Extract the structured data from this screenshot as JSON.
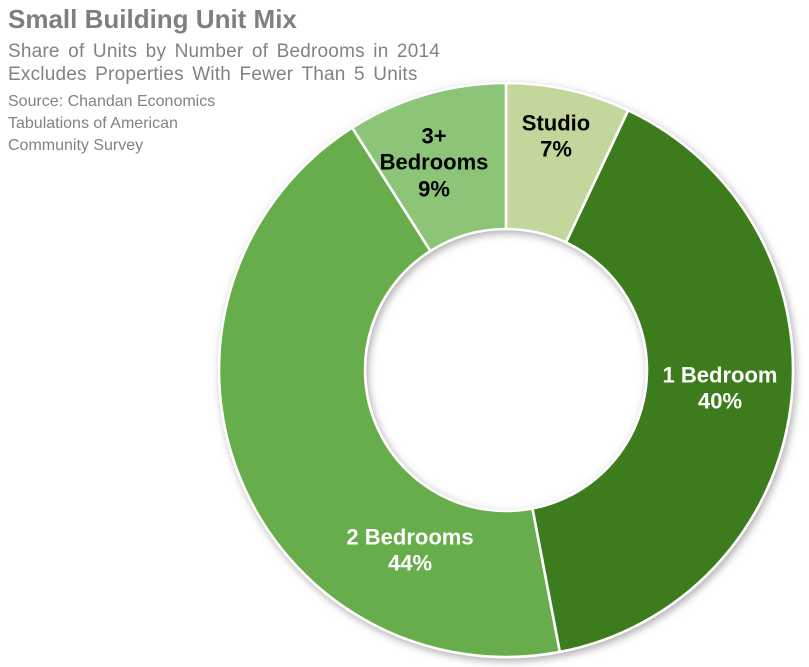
{
  "header": {
    "title": "Small Building Unit Mix",
    "subtitle_line1": "Share of Units by Number of Bedrooms in 2014",
    "subtitle_line2": "Excludes Properties With Fewer Than 5 Units",
    "source_line1": "Source: Chandan Economics",
    "source_line2": "Tabulations of American",
    "source_line3": "Community Survey",
    "title_color": "#7F7F7F",
    "subtitle_color": "#828282"
  },
  "chart_data": {
    "type": "pie",
    "subtype": "donut",
    "title": "Small Building Unit Mix",
    "categories": [
      "Studio",
      "1 Bedroom",
      "2 Bedrooms",
      "3+ Bedrooms"
    ],
    "values": [
      7,
      40,
      44,
      9
    ],
    "value_unit": "percent share of units",
    "start_angle_deg": 0,
    "direction": "clockwise",
    "legend_position": "none",
    "labels_inside_slices": true,
    "segments": [
      {
        "label": "Studio",
        "value": 7,
        "pct_label": "7%",
        "color": "#C3D69B",
        "label_color": "#000000"
      },
      {
        "label": "1 Bedroom",
        "value": 40,
        "pct_label": "40%",
        "color": "#3C7B1E",
        "label_color": "#FFFFFF"
      },
      {
        "label": "2 Bedrooms",
        "value": 44,
        "pct_label": "44%",
        "color": "#68AD4C",
        "label_color": "#FFFFFF"
      },
      {
        "label": "3+ Bedrooms",
        "value": 9,
        "pct_label": "9%",
        "color": "#8CC577",
        "label_color": "#000000"
      }
    ],
    "slice_border_color": "#FFFFFF"
  }
}
